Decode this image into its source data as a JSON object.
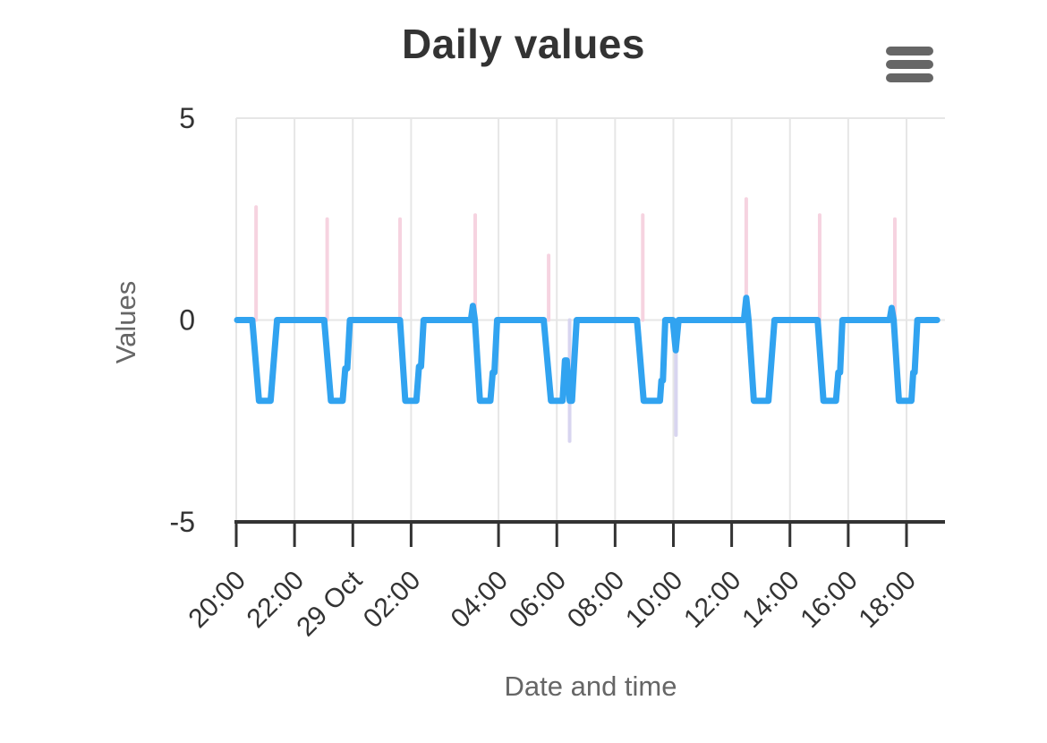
{
  "header": {
    "title": "Daily values",
    "menu_icon": "hamburger-icon"
  },
  "colors": {
    "title": "#333333",
    "axis_line": "#333333",
    "tick_label": "#333333",
    "axis_title": "#666666",
    "grid": "#e6e6e6",
    "menu": "#666666",
    "blue_line": "#31a3f0",
    "pink_spikes": "#f6d3e0",
    "purple_spikes": "#d8d5f0"
  },
  "chart_data": {
    "type": "line",
    "title": "Daily values",
    "xlabel": "Date and time",
    "ylabel": "Values",
    "grid": true,
    "legend": "none",
    "ylim": [
      -5,
      5
    ],
    "yticks": [
      5,
      0,
      -5
    ],
    "x_unit": "hours elapsed since 28 Oct 20:00 (DST fall-back day: 3 real hours between the 02:00 and 04:00 ticks)",
    "xlim": [
      0,
      24.32
    ],
    "xticks": [
      {
        "h": 0,
        "label": "20:00"
      },
      {
        "h": 2,
        "label": "22:00"
      },
      {
        "h": 4,
        "label": "29 Oct"
      },
      {
        "h": 6,
        "label": "02:00"
      },
      {
        "h": 9,
        "label": "04:00"
      },
      {
        "h": 11,
        "label": "06:00"
      },
      {
        "h": 13,
        "label": "08:00"
      },
      {
        "h": 15,
        "label": "10:00"
      },
      {
        "h": 17,
        "label": "12:00"
      },
      {
        "h": 19,
        "label": "14:00"
      },
      {
        "h": 21,
        "label": "16:00"
      },
      {
        "h": 23,
        "label": "18:00"
      }
    ],
    "series": [
      {
        "name": "main-blue-line",
        "type": "line",
        "width": 7,
        "points": [
          [
            0.03,
            0
          ],
          [
            0.55,
            0
          ],
          [
            0.78,
            -2
          ],
          [
            1.18,
            -2
          ],
          [
            1.4,
            0
          ],
          [
            3.02,
            0
          ],
          [
            3.25,
            -2
          ],
          [
            3.65,
            -2
          ],
          [
            3.74,
            -1.2
          ],
          [
            3.81,
            -1.2
          ],
          [
            3.9,
            0
          ],
          [
            5.62,
            0
          ],
          [
            5.8,
            -2
          ],
          [
            6.18,
            -2
          ],
          [
            6.27,
            -1.15
          ],
          [
            6.34,
            -1.15
          ],
          [
            6.43,
            0
          ],
          [
            8.05,
            0
          ],
          [
            8.12,
            0.35
          ],
          [
            8.19,
            0
          ],
          [
            8.36,
            -2
          ],
          [
            8.72,
            -2
          ],
          [
            8.8,
            -1.3
          ],
          [
            8.86,
            -1.3
          ],
          [
            8.95,
            0
          ],
          [
            10.55,
            0
          ],
          [
            10.8,
            -2
          ],
          [
            11.2,
            -2
          ],
          [
            11.28,
            -1.0
          ],
          [
            11.34,
            -1.0
          ],
          [
            11.44,
            -2
          ],
          [
            11.52,
            -2
          ],
          [
            11.68,
            0
          ],
          [
            13.75,
            0
          ],
          [
            13.98,
            -2
          ],
          [
            14.54,
            -2
          ],
          [
            14.59,
            -1.5
          ],
          [
            14.64,
            -1.5
          ],
          [
            14.72,
            0
          ],
          [
            14.98,
            0
          ],
          [
            15.08,
            -0.75
          ],
          [
            15.18,
            0
          ],
          [
            17.42,
            0
          ],
          [
            17.5,
            0.55
          ],
          [
            17.58,
            0
          ],
          [
            17.76,
            -2
          ],
          [
            18.26,
            -2
          ],
          [
            18.47,
            0
          ],
          [
            19.95,
            0
          ],
          [
            20.15,
            -2
          ],
          [
            20.58,
            -2
          ],
          [
            20.66,
            -1.3
          ],
          [
            20.72,
            -1.3
          ],
          [
            20.8,
            0
          ],
          [
            22.42,
            0
          ],
          [
            22.49,
            0.3
          ],
          [
            22.56,
            0
          ],
          [
            22.74,
            -2
          ],
          [
            23.17,
            -2
          ],
          [
            23.23,
            -1.3
          ],
          [
            23.28,
            -1.3
          ],
          [
            23.37,
            0
          ],
          [
            24.05,
            0
          ]
        ]
      },
      {
        "name": "upper-pink-spikes",
        "type": "vertical-spikes",
        "width": 4,
        "baseline": 0,
        "spikes": [
          [
            0.68,
            2.8
          ],
          [
            3.12,
            2.5
          ],
          [
            5.62,
            2.5
          ],
          [
            8.2,
            2.6
          ],
          [
            10.72,
            1.6
          ],
          [
            13.95,
            2.6
          ],
          [
            17.5,
            3.0
          ],
          [
            20.02,
            2.6
          ],
          [
            22.6,
            2.5
          ]
        ]
      },
      {
        "name": "lower-purple-spikes",
        "type": "vertical-spikes",
        "width": 4,
        "baseline": 0,
        "spikes": [
          [
            11.44,
            -3.0
          ],
          [
            15.09,
            -2.85
          ]
        ]
      }
    ]
  }
}
